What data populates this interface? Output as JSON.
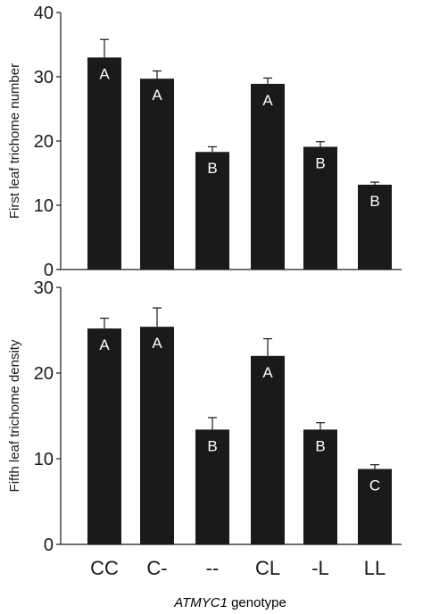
{
  "chart_data": [
    {
      "type": "bar",
      "ylabel": "First leaf trichome number",
      "ylim": [
        0,
        40
      ],
      "yticks": [
        0,
        10,
        20,
        30,
        40
      ],
      "categories": [
        "CC",
        "C-",
        "--",
        "CL",
        "-L",
        "LL"
      ],
      "values": [
        33,
        29.7,
        18.3,
        28.9,
        19.1,
        13.2
      ],
      "errors": [
        2.8,
        1.2,
        0.8,
        0.9,
        0.8,
        0.4
      ],
      "letters": [
        "A",
        "A",
        "B",
        "A",
        "B",
        "B"
      ]
    },
    {
      "type": "bar",
      "ylabel": "Fifth leaf trichome density",
      "ylim": [
        0,
        30
      ],
      "yticks": [
        0,
        10,
        20,
        30
      ],
      "categories": [
        "CC",
        "C-",
        "--",
        "CL",
        "-L",
        "LL"
      ],
      "values": [
        25.2,
        25.4,
        13.4,
        22.0,
        13.4,
        8.8
      ],
      "errors": [
        1.2,
        2.2,
        1.4,
        2.0,
        0.8,
        0.5
      ],
      "letters": [
        "A",
        "A",
        "B",
        "A",
        "B",
        "C"
      ]
    }
  ],
  "xlabel": {
    "italic": "ATMYC1",
    "rest": " genotype"
  }
}
